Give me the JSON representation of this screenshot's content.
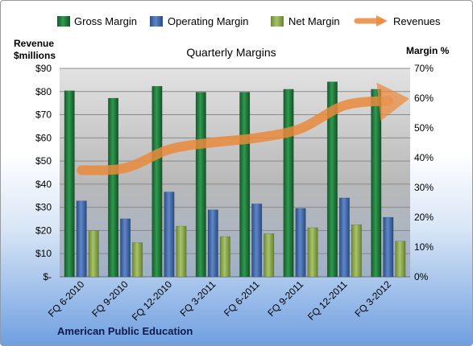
{
  "chart_data": {
    "type": "bar",
    "title": "Quarterly Margins",
    "footer": "American Public Education",
    "left_axis_label": [
      "Revenue",
      "$millions"
    ],
    "right_axis_label": "Margin %",
    "categories": [
      "FQ 6-2010",
      "FQ 9-2010",
      "FQ 12-2010",
      "FQ 3-2011",
      "FQ 6-2011",
      "FQ 9-2011",
      "FQ 12-2011",
      "FQ 3-2012"
    ],
    "left_ticks": [
      "$-",
      "$10",
      "$20",
      "$30",
      "$40",
      "$50",
      "$60",
      "$70",
      "$80",
      "$90"
    ],
    "right_ticks": [
      "0%",
      "10%",
      "20%",
      "30%",
      "40%",
      "50%",
      "60%",
      "70%"
    ],
    "ylim_left": [
      0,
      90
    ],
    "ylim_right": [
      0,
      70
    ],
    "legend_position": "top",
    "series": [
      {
        "name": "Gross Margin",
        "axis": "right",
        "kind": "bar",
        "color": "#1f7a3a",
        "values": [
          62.5,
          60.0,
          64.0,
          62.0,
          62.0,
          63.0,
          65.5,
          63.0
        ]
      },
      {
        "name": "Operating Margin",
        "axis": "right",
        "kind": "bar",
        "color": "#3e66a8",
        "values": [
          25.5,
          19.5,
          28.5,
          22.5,
          24.5,
          23.0,
          26.5,
          20.0
        ]
      },
      {
        "name": "Net Margin",
        "axis": "right",
        "kind": "bar",
        "color": "#8eab4e",
        "values": [
          15.5,
          11.5,
          17.0,
          13.5,
          14.5,
          16.5,
          17.5,
          12.0
        ]
      },
      {
        "name": "Revenues",
        "axis": "left",
        "kind": "line",
        "color": "#ea8a3c",
        "values": [
          46,
          47,
          55,
          58,
          60,
          64,
          74,
          76
        ]
      }
    ]
  }
}
